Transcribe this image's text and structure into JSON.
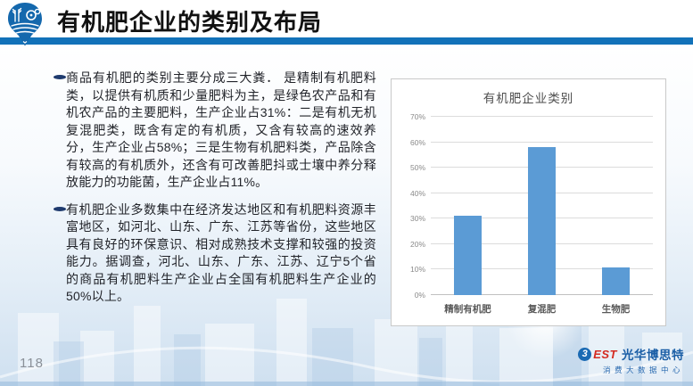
{
  "header": {
    "title": "有机肥企业的类别及布局",
    "accent_color": "#1272b9"
  },
  "content": {
    "bullets": [
      "商品有机肥的类别主要分成三大粪． 是精制有机肥料类，以提供有机质和少量肥料为主，是绿色农产品和有机农产品的主要肥料，生产企业占31%：二是有机无机复混肥类，既含有定的有机质，又含有较高的速效养分，生产企业占58%；三是生物有机肥料类，产品除含有较高的有机质外，还含有可改善肥抖或士壤中养分释放能力的功能菌，生产企业占11%。",
      "有机肥企业多数集中在经济发达地区和有机肥料资源丰富地区，如河北、山东、广东、江苏等省份，这些地区具有良好的环保意识、相对成熟技术支撑和较强的投资能力。据调查，河北、山东、广东、江苏、辽宁5个省的商品有机肥料生产企业占全国有机肥料生产企业的50%以上。"
    ]
  },
  "chart_data": {
    "type": "bar",
    "title": "有机肥企业类别",
    "categories": [
      "精制有机肥",
      "复混肥",
      "生物肥"
    ],
    "values": [
      31,
      58,
      11
    ],
    "unit": "%",
    "xlabel": "",
    "ylabel": "",
    "ylim": [
      0,
      70
    ],
    "ytick_step": 10,
    "ytick_labels": [
      "0%",
      "10%",
      "20%",
      "30%",
      "40%",
      "50%",
      "60%",
      "70%"
    ],
    "bar_color": "#5b9bd5",
    "grid": true,
    "legend": false
  },
  "footer": {
    "page_number": "118",
    "brand": {
      "circle_glyph": "3",
      "est": "EST",
      "name": "光华博思特",
      "subtitle": "消费大数据中心"
    }
  }
}
